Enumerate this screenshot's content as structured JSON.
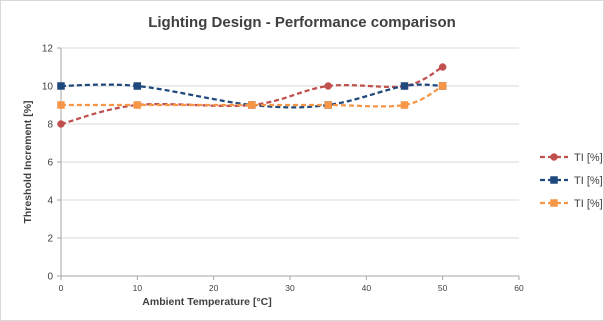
{
  "chart_data": {
    "type": "line",
    "title": "Lighting Design - Performance comparison",
    "xlabel": "Ambient Temperature [°C]",
    "ylabel": "Threshold Increment [%]",
    "xlim": [
      0,
      60
    ],
    "ylim": [
      0,
      12
    ],
    "xticks": [
      "0",
      "10",
      "20",
      "30",
      "40",
      "50",
      "60"
    ],
    "yticks": [
      "0",
      "2",
      "4",
      "6",
      "8",
      "10",
      "12"
    ],
    "grid": true,
    "legend_position": "right",
    "smooth": true,
    "line_style": "dashed",
    "series": [
      {
        "name": "TI [%]",
        "color": "#c0504d",
        "marker": "circle",
        "x": [
          0,
          10,
          25,
          35,
          45,
          50
        ],
        "y": [
          8,
          9,
          9,
          10,
          10,
          11
        ]
      },
      {
        "name": "TI [%]",
        "color": "#1f497d",
        "marker": "square",
        "x": [
          0,
          10,
          25,
          35,
          45,
          50
        ],
        "y": [
          10,
          10,
          9,
          9,
          10,
          10
        ]
      },
      {
        "name": "TI [%]",
        "color": "#f79646",
        "marker": "square",
        "x": [
          0,
          10,
          25,
          35,
          45,
          50
        ],
        "y": [
          9,
          9,
          9,
          9,
          9,
          10
        ]
      }
    ]
  }
}
